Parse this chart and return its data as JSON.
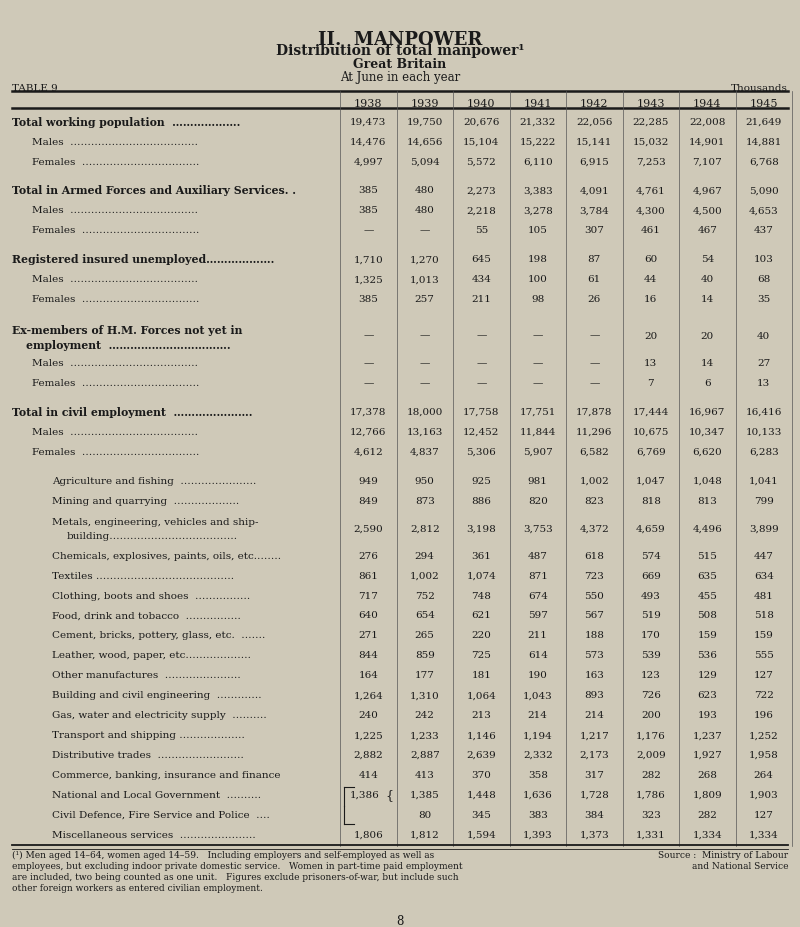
{
  "title1": "II.  MANPOWER",
  "title2": "Distribution of total manpower¹",
  "title3": "Great Britain",
  "title4": "At June in each year",
  "table_label": "TABLE 9",
  "thousands_label": "Thousands",
  "years": [
    "1938",
    "1939",
    "1940",
    "1941",
    "1942",
    "1943",
    "1944",
    "1945"
  ],
  "bg_color": "#cfc9b8",
  "rows": [
    {
      "label": "Total working population  ……………….",
      "indent": 0,
      "bold": true,
      "values": [
        "19,473",
        "19,750",
        "20,676",
        "21,332",
        "22,056",
        "22,285",
        "22,008",
        "21,649"
      ]
    },
    {
      "label": "Males  ……………………………….",
      "indent": 1,
      "bold": false,
      "values": [
        "14,476",
        "14,656",
        "15,104",
        "15,222",
        "15,141",
        "15,032",
        "14,901",
        "14,881"
      ]
    },
    {
      "label": "Females  …………………………….",
      "indent": 1,
      "bold": false,
      "values": [
        "4,997",
        "5,094",
        "5,572",
        "6,110",
        "6,915",
        "7,253",
        "7,107",
        "6,768"
      ]
    },
    {
      "label": "",
      "indent": 0,
      "bold": false,
      "values": [
        "",
        "",
        "",
        "",
        "",
        "",
        "",
        ""
      ],
      "spacer": true
    },
    {
      "label": "Total in Armed Forces and Auxiliary Services. .",
      "indent": 0,
      "bold": true,
      "values": [
        "385",
        "480",
        "2,273",
        "3,383",
        "4,091",
        "4,761",
        "4,967",
        "5,090"
      ]
    },
    {
      "label": "Males  ……………………………….",
      "indent": 1,
      "bold": false,
      "values": [
        "385",
        "480",
        "2,218",
        "3,278",
        "3,784",
        "4,300",
        "4,500",
        "4,653"
      ]
    },
    {
      "label": "Females  …………………………….",
      "indent": 1,
      "bold": false,
      "values": [
        "—",
        "—",
        "55",
        "105",
        "307",
        "461",
        "467",
        "437"
      ]
    },
    {
      "label": "",
      "indent": 0,
      "bold": false,
      "values": [
        "",
        "",
        "",
        "",
        "",
        "",
        "",
        ""
      ],
      "spacer": true
    },
    {
      "label": "Registered insured unemployed……………….",
      "indent": 0,
      "bold": true,
      "values": [
        "1,710",
        "1,270",
        "645",
        "198",
        "87",
        "60",
        "54",
        "103"
      ]
    },
    {
      "label": "Males  ……………………………….",
      "indent": 1,
      "bold": false,
      "values": [
        "1,325",
        "1,013",
        "434",
        "100",
        "61",
        "44",
        "40",
        "68"
      ]
    },
    {
      "label": "Females  …………………………….",
      "indent": 1,
      "bold": false,
      "values": [
        "385",
        "257",
        "211",
        "98",
        "26",
        "16",
        "14",
        "35"
      ]
    },
    {
      "label": "",
      "indent": 0,
      "bold": false,
      "values": [
        "",
        "",
        "",
        "",
        "",
        "",
        "",
        ""
      ],
      "spacer": true
    },
    {
      "label": "Ex-members of H.M. Forces not yet in",
      "indent": 0,
      "bold": true,
      "multiline": true,
      "label2": "    employment  …………………………….",
      "values": [
        "—",
        "—",
        "—",
        "—",
        "—",
        "20",
        "20",
        "40"
      ]
    },
    {
      "label": "Males  ……………………………….",
      "indent": 1,
      "bold": false,
      "values": [
        "—",
        "—",
        "—",
        "—",
        "—",
        "13",
        "14",
        "27"
      ]
    },
    {
      "label": "Females  …………………………….",
      "indent": 1,
      "bold": false,
      "values": [
        "—",
        "—",
        "—",
        "—",
        "—",
        "7",
        "6",
        "13"
      ]
    },
    {
      "label": "",
      "indent": 0,
      "bold": false,
      "values": [
        "",
        "",
        "",
        "",
        "",
        "",
        "",
        ""
      ],
      "spacer": true
    },
    {
      "label": "Total in civil employment  ………………….",
      "indent": 0,
      "bold": true,
      "values": [
        "17,378",
        "18,000",
        "17,758",
        "17,751",
        "17,878",
        "17,444",
        "16,967",
        "16,416"
      ]
    },
    {
      "label": "Males  ……………………………….",
      "indent": 1,
      "bold": false,
      "values": [
        "12,766",
        "13,163",
        "12,452",
        "11,844",
        "11,296",
        "10,675",
        "10,347",
        "10,133"
      ]
    },
    {
      "label": "Females  …………………………….",
      "indent": 1,
      "bold": false,
      "values": [
        "4,612",
        "4,837",
        "5,306",
        "5,907",
        "6,582",
        "6,769",
        "6,620",
        "6,283"
      ]
    },
    {
      "label": "",
      "indent": 0,
      "bold": false,
      "values": [
        "",
        "",
        "",
        "",
        "",
        "",
        "",
        ""
      ],
      "spacer": true
    },
    {
      "label": "Agriculture and fishing  ………………….",
      "indent": 2,
      "bold": false,
      "values": [
        "949",
        "950",
        "925",
        "981",
        "1,002",
        "1,047",
        "1,048",
        "1,041"
      ]
    },
    {
      "label": "Mining and quarrying  ……………….",
      "indent": 2,
      "bold": false,
      "values": [
        "849",
        "873",
        "886",
        "820",
        "823",
        "818",
        "813",
        "799"
      ]
    },
    {
      "label": "Metals, engineering, vehicles and ship-",
      "indent": 2,
      "bold": false,
      "multiline": true,
      "label2": "    building……………………………….",
      "values": [
        "2,590",
        "2,812",
        "3,198",
        "3,753",
        "4,372",
        "4,659",
        "4,496",
        "3,899"
      ]
    },
    {
      "label": "Chemicals, explosives, paints, oils, etc.…….",
      "indent": 2,
      "bold": false,
      "values": [
        "276",
        "294",
        "361",
        "487",
        "618",
        "574",
        "515",
        "447"
      ]
    },
    {
      "label": "Textiles ………………………………….",
      "indent": 2,
      "bold": false,
      "values": [
        "861",
        "1,002",
        "1,074",
        "871",
        "723",
        "669",
        "635",
        "634"
      ]
    },
    {
      "label": "Clothing, boots and shoes  …………….",
      "indent": 2,
      "bold": false,
      "values": [
        "717",
        "752",
        "748",
        "674",
        "550",
        "493",
        "455",
        "481"
      ]
    },
    {
      "label": "Food, drink and tobacco  …………….",
      "indent": 2,
      "bold": false,
      "values": [
        "640",
        "654",
        "621",
        "597",
        "567",
        "519",
        "508",
        "518"
      ]
    },
    {
      "label": "Cement, bricks, pottery, glass, etc.  …….",
      "indent": 2,
      "bold": false,
      "values": [
        "271",
        "265",
        "220",
        "211",
        "188",
        "170",
        "159",
        "159"
      ]
    },
    {
      "label": "Leather, wood, paper, etc……………….",
      "indent": 2,
      "bold": false,
      "values": [
        "844",
        "859",
        "725",
        "614",
        "573",
        "539",
        "536",
        "555"
      ]
    },
    {
      "label": "Other manufactures  ………………….",
      "indent": 2,
      "bold": false,
      "values": [
        "164",
        "177",
        "181",
        "190",
        "163",
        "123",
        "129",
        "127"
      ]
    },
    {
      "label": "Building and civil engineering  ………….",
      "indent": 2,
      "bold": false,
      "values": [
        "1,264",
        "1,310",
        "1,064",
        "1,043",
        "893",
        "726",
        "623",
        "722"
      ]
    },
    {
      "label": "Gas, water and electricity supply  ……….",
      "indent": 2,
      "bold": false,
      "values": [
        "240",
        "242",
        "213",
        "214",
        "214",
        "200",
        "193",
        "196"
      ]
    },
    {
      "label": "Transport and shipping ……………….",
      "indent": 2,
      "bold": false,
      "values": [
        "1,225",
        "1,233",
        "1,146",
        "1,194",
        "1,217",
        "1,176",
        "1,237",
        "1,252"
      ]
    },
    {
      "label": "Distributive trades  …………………….",
      "indent": 2,
      "bold": false,
      "values": [
        "2,882",
        "2,887",
        "2,639",
        "2,332",
        "2,173",
        "2,009",
        "1,927",
        "1,958"
      ]
    },
    {
      "label": "Commerce, banking, insurance and finance",
      "indent": 2,
      "bold": false,
      "values": [
        "414",
        "413",
        "370",
        "358",
        "317",
        "282",
        "268",
        "264"
      ]
    },
    {
      "label": "National and Local Government  ……….",
      "indent": 2,
      "bold": false,
      "brace": true,
      "values": [
        "1,386",
        "1,385",
        "1,448",
        "1,636",
        "1,728",
        "1,786",
        "1,809",
        "1,903"
      ]
    },
    {
      "label": "Civil Defence, Fire Service and Police  ….",
      "indent": 2,
      "bold": false,
      "civil_defence": true,
      "values": [
        "",
        "80",
        "345",
        "383",
        "384",
        "323",
        "282",
        "127"
      ]
    },
    {
      "label": "Miscellaneous services  ………………….",
      "indent": 2,
      "bold": false,
      "values": [
        "1,806",
        "1,812",
        "1,594",
        "1,393",
        "1,373",
        "1,331",
        "1,334",
        "1,334"
      ]
    }
  ],
  "footnote1": "(¹) Men aged 14–64, women aged 14–59.   Including employers and self-employed as well as",
  "footnote2": "employees, but excluding indoor private domestic service.   Women in part-time paid employment",
  "footnote3": "are included, two being counted as one unit.   Figures exclude prisoners-of-war, but include such",
  "footnote4": "other foreign workers as entered civilian employment.",
  "source1": "Source :  Ministry of Labour",
  "source2": "and National Service",
  "page_num": "8"
}
